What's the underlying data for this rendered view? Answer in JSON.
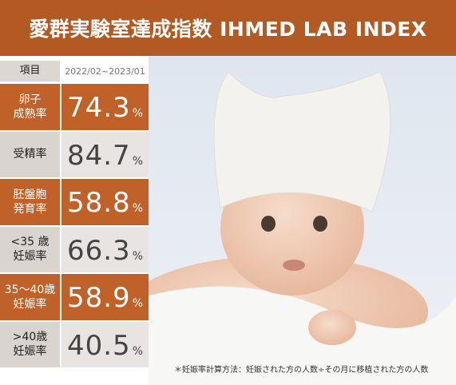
{
  "header": {
    "title": "愛群実験室達成指数 IHMED LAB INDEX"
  },
  "table": {
    "head": [
      "項目",
      "2022/02~2023/01"
    ],
    "rows": [
      {
        "label": [
          "卵子",
          "成熟率"
        ],
        "value": 74.3,
        "unit": "%"
      },
      {
        "label": [
          "受精率"
        ],
        "value": 84.7,
        "unit": "%"
      },
      {
        "label": [
          "胚盤胞",
          "発育率"
        ],
        "value": 58.8,
        "unit": "%"
      },
      {
        "label": [
          "<35 歳",
          "妊娠率"
        ],
        "value": 66.3,
        "unit": "%"
      },
      {
        "label": [
          "35～40歳",
          "妊娠率"
        ],
        "value": 58.9,
        "unit": "%"
      },
      {
        "label": [
          ">40歳",
          "妊娠率"
        ],
        "value": 40.5,
        "unit": "%"
      }
    ]
  },
  "footnote": "＊妊娠率計算方法：妊娠された方の人数÷その月に移植された方の人数"
}
